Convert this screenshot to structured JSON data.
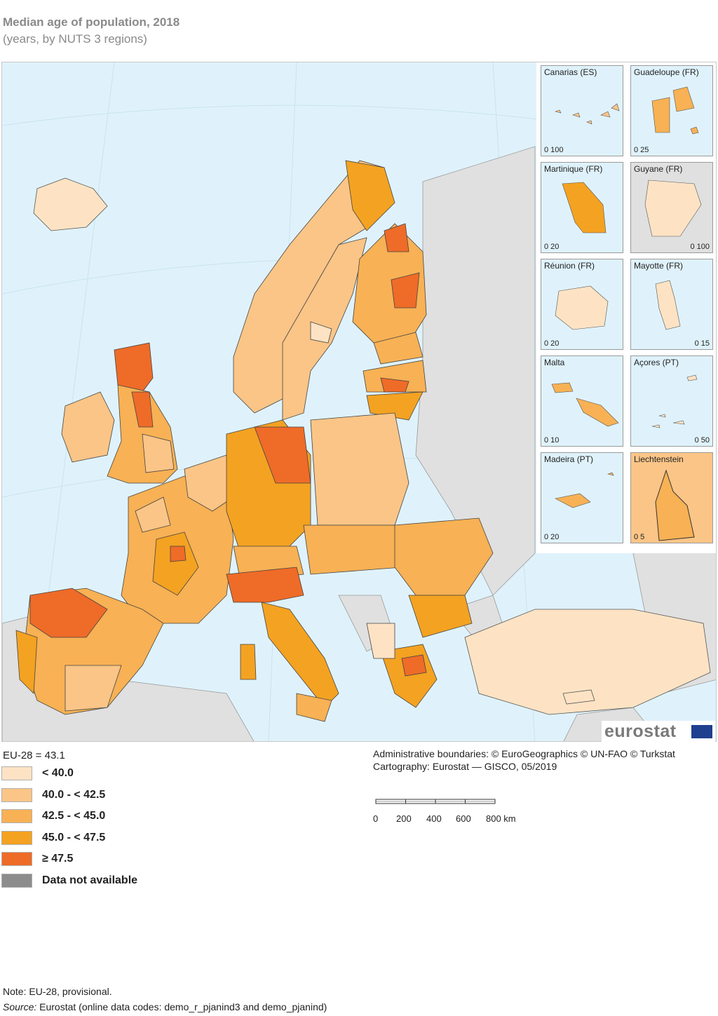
{
  "title": "Median age of population, 2018",
  "subtitle": "(years, by NUTS 3 regions)",
  "eu_average": "EU-28 = 43.1",
  "legend": [
    {
      "label": "< 40.0",
      "color": "#fde3c4"
    },
    {
      "label": "40.0 - < 42.5",
      "color": "#fbc587"
    },
    {
      "label": "42.5 - < 45.0",
      "color": "#f8b154"
    },
    {
      "label": "45.0 - < 47.5",
      "color": "#f4a221"
    },
    {
      "label": "≥ 47.5",
      "color": "#ef6b28"
    },
    {
      "label": "Data not available",
      "color": "#8c8c8c"
    }
  ],
  "colors": {
    "sea": "#dff2fb",
    "non_eu_land": "#e0e0e0",
    "border": "#2b2b2b"
  },
  "insets": [
    {
      "label": "Canarias (ES)",
      "scale": "0 100",
      "color": "#fbc587"
    },
    {
      "label": "Guadeloupe (FR)",
      "scale": "0 25",
      "color": "#f8b154"
    },
    {
      "label": "Martinique (FR)",
      "scale": "0 20",
      "color": "#f4a221"
    },
    {
      "label": "Guyane (FR)",
      "scale": "0 100",
      "color": "#fde3c4"
    },
    {
      "label": "Réunion (FR)",
      "scale": "0 20",
      "color": "#fde3c4"
    },
    {
      "label": "Mayotte (FR)",
      "scale": "0 15",
      "color": "#fde3c4"
    },
    {
      "label": "Malta",
      "scale": "0 10",
      "color": "#f8b154"
    },
    {
      "label": "Açores (PT)",
      "scale": "0 50",
      "color": "#fde3c4"
    },
    {
      "label": "Madeira (PT)",
      "scale": "0 20",
      "color": "#f8b154"
    },
    {
      "label": "Liechtenstein",
      "scale": "0 5",
      "color": "#f8b154"
    }
  ],
  "logo_text": "eurostat",
  "credits": {
    "line1": "Administrative boundaries: © EuroGeographics © UN-FAO © Turkstat",
    "line2": "Cartography: Eurostat — GISCO, 05/2019"
  },
  "scalebar": {
    "ticks": [
      "0",
      "200",
      "400",
      "600",
      "800 km"
    ]
  },
  "note": "Note: EU-28, provisional.",
  "source": {
    "prefix": "Source:",
    "text": " Eurostat (online data codes: demo_r_pjanind3 and demo_pjanind)"
  }
}
